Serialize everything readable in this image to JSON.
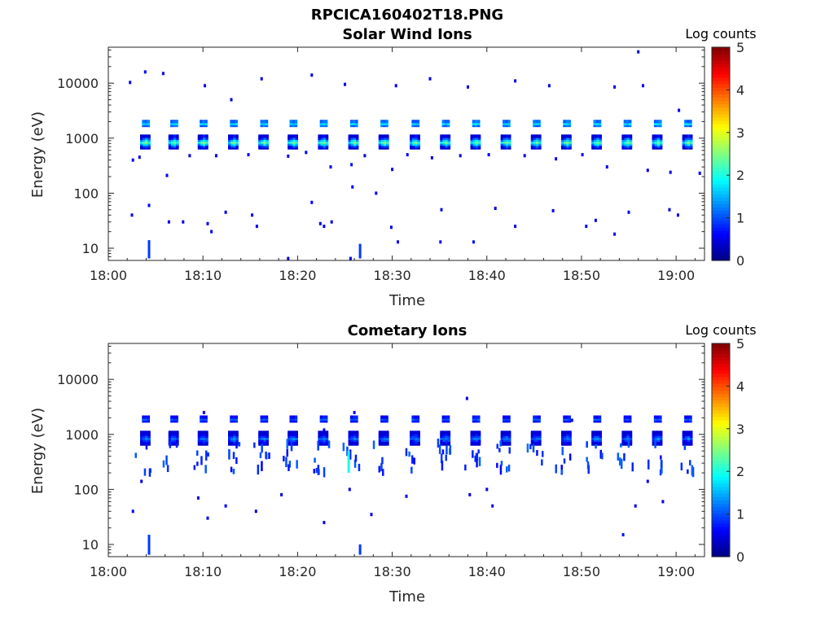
{
  "figure_title": "RPCICA160402T18.PNG",
  "colormap": [
    "#00007f",
    "#0000ff",
    "#0080ff",
    "#00ffff",
    "#80ff80",
    "#ffff00",
    "#ff8000",
    "#ff0000",
    "#7f0000"
  ],
  "chart_data": [
    {
      "type": "heatmap",
      "title": "Solar Wind Ions",
      "xlabel": "Time",
      "ylabel": "Energy (eV)",
      "x_ticks": [
        "18:00",
        "18:10",
        "18:20",
        "18:30",
        "18:40",
        "18:50",
        "19:00"
      ],
      "x_range_minutes": [
        0,
        63
      ],
      "y_ticks": [
        "10",
        "100",
        "1000",
        "10000"
      ],
      "y_scale": "log",
      "y_range_eV": [
        6,
        45000
      ],
      "colorbar": {
        "label": "Log counts",
        "ticks": [
          "0",
          "1",
          "2",
          "3",
          "4",
          "5"
        ],
        "range": [
          0,
          5
        ]
      },
      "cluster_times_minutes": [
        4.0,
        7.0,
        10.1,
        13.3,
        16.5,
        19.6,
        22.8,
        26.0,
        29.2,
        32.5,
        35.7,
        38.9,
        42.1,
        45.3,
        48.5,
        51.7,
        54.9,
        58.1,
        61.3
      ],
      "primary_peak_eV": [
        850,
        1850
      ],
      "primary_peak_log_counts": [
        2.6,
        1.7
      ],
      "scattered_counts": [
        {
          "t": 2.3,
          "e": 10300,
          "c": 0.6
        },
        {
          "t": 3.9,
          "e": 16000,
          "c": 0.6
        },
        {
          "t": 5.8,
          "e": 15000,
          "c": 0.5
        },
        {
          "t": 10.2,
          "e": 9000,
          "c": 0.6
        },
        {
          "t": 13.0,
          "e": 5000,
          "c": 0.5
        },
        {
          "t": 16.2,
          "e": 12000,
          "c": 0.5
        },
        {
          "t": 21.5,
          "e": 14000,
          "c": 0.5
        },
        {
          "t": 25.0,
          "e": 9500,
          "c": 0.6
        },
        {
          "t": 30.4,
          "e": 9000,
          "c": 0.6
        },
        {
          "t": 34.0,
          "e": 12000,
          "c": 0.5
        },
        {
          "t": 38.0,
          "e": 8500,
          "c": 0.5
        },
        {
          "t": 43.0,
          "e": 11000,
          "c": 0.5
        },
        {
          "t": 46.6,
          "e": 9000,
          "c": 0.5
        },
        {
          "t": 53.5,
          "e": 8500,
          "c": 0.6
        },
        {
          "t": 56.5,
          "e": 9000,
          "c": 0.6
        },
        {
          "t": 56.0,
          "e": 37000,
          "c": 0.5
        },
        {
          "t": 60.3,
          "e": 3200,
          "c": 0.5
        },
        {
          "t": 2.6,
          "e": 400,
          "c": 0.6
        },
        {
          "t": 3.3,
          "e": 450,
          "c": 0.5
        },
        {
          "t": 6.2,
          "e": 210,
          "c": 0.6
        },
        {
          "t": 8.6,
          "e": 480,
          "c": 0.5
        },
        {
          "t": 11.4,
          "e": 480,
          "c": 0.5
        },
        {
          "t": 14.8,
          "e": 500,
          "c": 0.6
        },
        {
          "t": 19.0,
          "e": 470,
          "c": 0.5
        },
        {
          "t": 20.9,
          "e": 550,
          "c": 0.5
        },
        {
          "t": 23.5,
          "e": 300,
          "c": 0.6
        },
        {
          "t": 25.7,
          "e": 330,
          "c": 0.7
        },
        {
          "t": 27.1,
          "e": 480,
          "c": 0.5
        },
        {
          "t": 30.0,
          "e": 270,
          "c": 0.5
        },
        {
          "t": 31.6,
          "e": 500,
          "c": 0.6
        },
        {
          "t": 34.2,
          "e": 440,
          "c": 0.5
        },
        {
          "t": 37.2,
          "e": 480,
          "c": 0.5
        },
        {
          "t": 40.2,
          "e": 500,
          "c": 0.5
        },
        {
          "t": 44.0,
          "e": 480,
          "c": 0.5
        },
        {
          "t": 47.3,
          "e": 420,
          "c": 0.6
        },
        {
          "t": 50.1,
          "e": 500,
          "c": 0.5
        },
        {
          "t": 52.7,
          "e": 300,
          "c": 0.5
        },
        {
          "t": 57.0,
          "e": 260,
          "c": 0.5
        },
        {
          "t": 59.4,
          "e": 240,
          "c": 0.5
        },
        {
          "t": 62.5,
          "e": 230,
          "c": 0.5
        },
        {
          "t": 2.5,
          "e": 40,
          "c": 0.6
        },
        {
          "t": 4.3,
          "e": 60,
          "c": 0.6
        },
        {
          "t": 6.4,
          "e": 30,
          "c": 0.5
        },
        {
          "t": 7.9,
          "e": 30,
          "c": 0.5
        },
        {
          "t": 10.5,
          "e": 28,
          "c": 0.6
        },
        {
          "t": 10.9,
          "e": 20,
          "c": 0.5
        },
        {
          "t": 12.4,
          "e": 45,
          "c": 0.5
        },
        {
          "t": 15.2,
          "e": 40,
          "c": 0.5
        },
        {
          "t": 15.7,
          "e": 25,
          "c": 0.5
        },
        {
          "t": 21.5,
          "e": 68,
          "c": 0.6
        },
        {
          "t": 22.4,
          "e": 28,
          "c": 0.5
        },
        {
          "t": 22.8,
          "e": 25,
          "c": 0.5
        },
        {
          "t": 23.6,
          "e": 30,
          "c": 0.5
        },
        {
          "t": 25.8,
          "e": 130,
          "c": 0.6
        },
        {
          "t": 28.3,
          "e": 100,
          "c": 0.6
        },
        {
          "t": 29.9,
          "e": 24,
          "c": 0.6
        },
        {
          "t": 30.6,
          "e": 13,
          "c": 0.6
        },
        {
          "t": 35.2,
          "e": 50,
          "c": 0.6
        },
        {
          "t": 35.1,
          "e": 13,
          "c": 0.7
        },
        {
          "t": 38.6,
          "e": 13,
          "c": 0.7
        },
        {
          "t": 40.9,
          "e": 53,
          "c": 0.5
        },
        {
          "t": 43.0,
          "e": 25,
          "c": 0.5
        },
        {
          "t": 47.0,
          "e": 48,
          "c": 0.5
        },
        {
          "t": 50.5,
          "e": 25,
          "c": 0.5
        },
        {
          "t": 51.5,
          "e": 32,
          "c": 0.5
        },
        {
          "t": 53.5,
          "e": 18,
          "c": 0.6
        },
        {
          "t": 55.0,
          "e": 45,
          "c": 0.6
        },
        {
          "t": 59.3,
          "e": 50,
          "c": 0.5
        },
        {
          "t": 60.2,
          "e": 40,
          "c": 0.5
        },
        {
          "t": 19.0,
          "e": 6.5,
          "c": 0.5
        },
        {
          "t": 25.6,
          "e": 6.5,
          "c": 0.5
        }
      ],
      "vertical_streaks": [
        {
          "t": 4.3,
          "e_low": 6.5,
          "e_high": 14,
          "c": 0.9
        },
        {
          "t": 26.6,
          "e_low": 6.5,
          "e_high": 12,
          "c": 0.9
        }
      ]
    },
    {
      "type": "heatmap",
      "title": "Cometary Ions",
      "xlabel": "Time",
      "ylabel": "Energy (eV)",
      "x_ticks": [
        "18:00",
        "18:10",
        "18:20",
        "18:30",
        "18:40",
        "18:50",
        "19:00"
      ],
      "x_range_minutes": [
        0,
        63
      ],
      "y_ticks": [
        "10",
        "100",
        "1000",
        "10000"
      ],
      "y_scale": "log",
      "y_range_eV": [
        6,
        45000
      ],
      "colorbar": {
        "label": "Log counts",
        "ticks": [
          "0",
          "1",
          "2",
          "3",
          "4",
          "5"
        ],
        "range": [
          0,
          5
        ]
      },
      "cluster_times_minutes": [
        4.0,
        7.0,
        10.1,
        13.3,
        16.5,
        19.6,
        22.8,
        26.0,
        29.2,
        32.5,
        35.7,
        38.9,
        42.1,
        45.3,
        48.5,
        51.7,
        54.9,
        58.1,
        61.3
      ],
      "primary_peak_eV": [
        850,
        1900
      ],
      "primary_peak_log_counts": [
        1.4,
        1.0
      ],
      "spread_band_eV": [
        200,
        700
      ],
      "spread_band_log_counts": 0.9,
      "scattered_counts": [
        {
          "t": 2.6,
          "e": 40,
          "c": 0.6
        },
        {
          "t": 3.5,
          "e": 140,
          "c": 0.5
        },
        {
          "t": 9.5,
          "e": 70,
          "c": 0.5
        },
        {
          "t": 10.5,
          "e": 30,
          "c": 0.6
        },
        {
          "t": 12.4,
          "e": 50,
          "c": 0.6
        },
        {
          "t": 15.6,
          "e": 40,
          "c": 0.5
        },
        {
          "t": 18.3,
          "e": 80,
          "c": 0.5
        },
        {
          "t": 22.8,
          "e": 25,
          "c": 0.6
        },
        {
          "t": 25.5,
          "e": 100,
          "c": 0.6
        },
        {
          "t": 27.8,
          "e": 35,
          "c": 0.5
        },
        {
          "t": 31.5,
          "e": 75,
          "c": 0.5
        },
        {
          "t": 37.9,
          "e": 4500,
          "c": 0.5
        },
        {
          "t": 38.2,
          "e": 80,
          "c": 0.5
        },
        {
          "t": 40.0,
          "e": 100,
          "c": 0.5
        },
        {
          "t": 40.6,
          "e": 50,
          "c": 0.6
        },
        {
          "t": 54.4,
          "e": 15,
          "c": 0.7
        },
        {
          "t": 55.7,
          "e": 50,
          "c": 0.6
        },
        {
          "t": 57.0,
          "e": 140,
          "c": 0.5
        },
        {
          "t": 58.6,
          "e": 60,
          "c": 0.5
        },
        {
          "t": 22.8,
          "e": 1200,
          "c": 0.6
        },
        {
          "t": 10.1,
          "e": 2500,
          "c": 0.6
        },
        {
          "t": 26.0,
          "e": 2500,
          "c": 0.6
        },
        {
          "t": 49.0,
          "e": 1800,
          "c": 0.5
        }
      ],
      "vertical_streaks": [
        {
          "t": 4.3,
          "e_low": 6.5,
          "e_high": 15,
          "c": 0.9
        },
        {
          "t": 26.6,
          "e_low": 6.5,
          "e_high": 10,
          "c": 0.9
        },
        {
          "t": 25.4,
          "e_low": 200,
          "e_high": 500,
          "c": 2.0
        }
      ]
    }
  ]
}
